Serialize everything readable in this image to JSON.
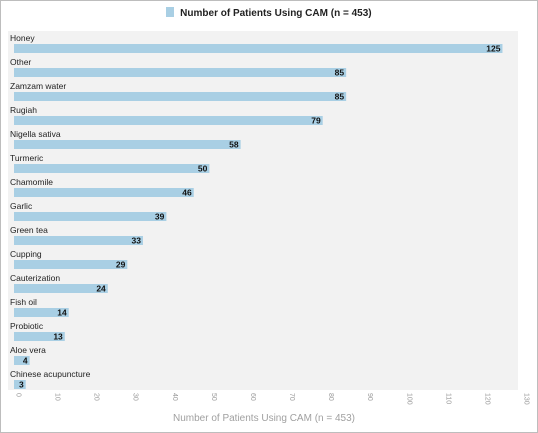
{
  "chart_data": {
    "type": "bar",
    "orientation": "horizontal",
    "title": "",
    "legend": {
      "position": "top-center",
      "entries": [
        "Number of Patients Using CAM (n = 453)"
      ]
    },
    "categories": [
      "Honey",
      "Other",
      "Zamzam water",
      "Rugiah",
      "Nigella sativa",
      "Turmeric",
      "Chamomile",
      "Garlic",
      "Green tea",
      "Cupping",
      "Cauterization",
      "Fish oil",
      "Probiotic",
      "Aloe vera",
      "Chinese acupuncture"
    ],
    "series": [
      {
        "name": "Number of Patients Using CAM (n = 453)",
        "values": [
          125,
          85,
          85,
          79,
          58,
          50,
          46,
          39,
          33,
          29,
          24,
          14,
          13,
          4,
          3
        ],
        "color": "#a9cfe4"
      }
    ],
    "xlabel": "Number of Patients Using CAM (n = 453)",
    "ylabel": "",
    "xlim": [
      0,
      130
    ],
    "xticks": [
      "0",
      "10",
      "20",
      "30",
      "40",
      "50",
      "60",
      "70",
      "80",
      "90",
      "100",
      "110",
      "120",
      "130"
    ],
    "grid": false,
    "plot_background": "#f2f2f2"
  }
}
